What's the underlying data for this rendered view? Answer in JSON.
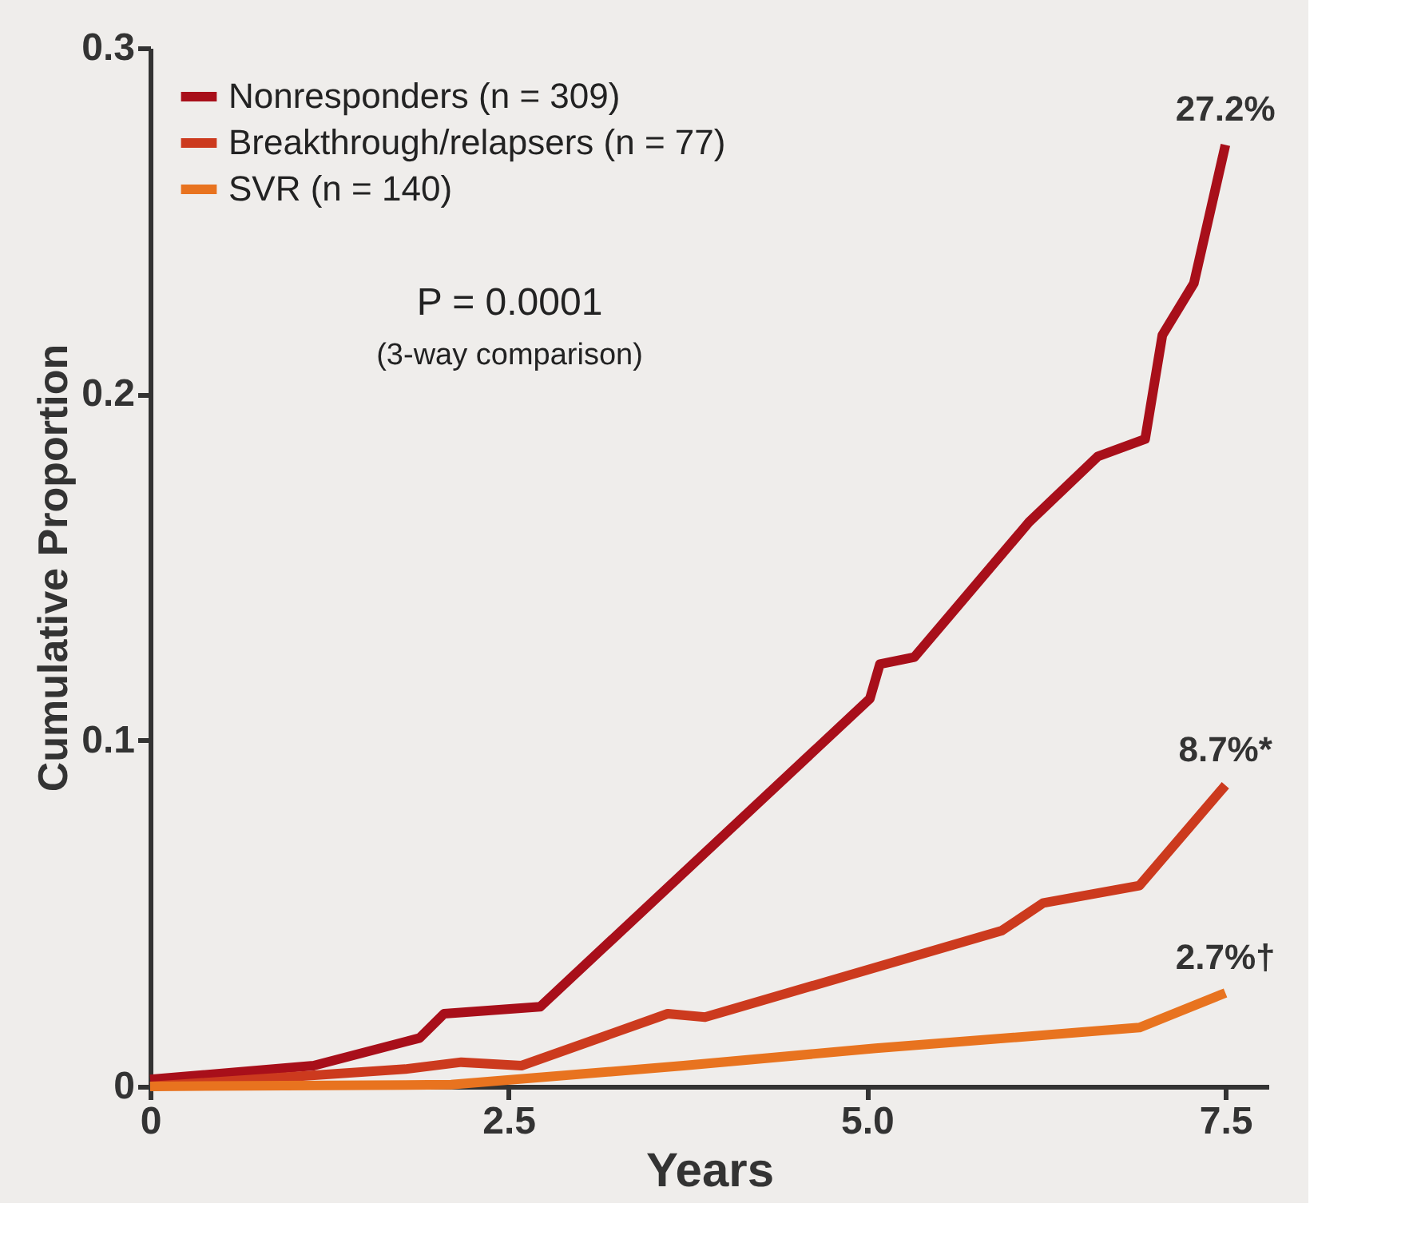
{
  "chart_data": {
    "type": "line",
    "xlabel": "Years",
    "ylabel": "Cumulative Proportion",
    "xlim": [
      0,
      7.8
    ],
    "ylim": [
      0,
      0.3
    ],
    "xticks": [
      0,
      2.5,
      {
        "value": 5,
        "label": "5.0"
      },
      7.5
    ],
    "yticks": [
      0,
      0.1,
      0.2,
      0.3
    ],
    "grid": false,
    "legend": "top left",
    "marker": "none",
    "line_style": "solid",
    "series": [
      {
        "name": "Nonresponders (n = 309)",
        "color": "#a80f1a",
        "x": [
          0,
          1.14,
          1.88,
          2.05,
          2.72,
          5.02,
          5.09,
          5.33,
          6.13,
          6.61,
          6.94,
          7.06,
          7.28,
          7.5
        ],
        "values": [
          0.002,
          0.006,
          0.014,
          0.021,
          0.023,
          0.112,
          0.122,
          0.124,
          0.163,
          0.182,
          0.187,
          0.217,
          0.232,
          0.272
        ]
      },
      {
        "name": "Breakthrough/relapsers (n = 77)",
        "color": "#cc3a1e",
        "x": [
          0,
          1.78,
          2.17,
          2.59,
          3.61,
          3.87,
          5.94,
          6.23,
          6.9,
          7.5
        ],
        "values": [
          0,
          0.005,
          0.007,
          0.006,
          0.021,
          0.02,
          0.045,
          0.053,
          0.058,
          0.087
        ]
      },
      {
        "name": "SVR (n = 140)",
        "color": "#e8731f",
        "x": [
          0,
          2.1,
          3.72,
          5.06,
          6.9,
          7.5
        ],
        "values": [
          0,
          0.0005,
          0.006,
          0.011,
          0.017,
          0.027
        ]
      }
    ],
    "annotations": [
      "27.2%",
      "8.7%*",
      "2.7%†",
      "P = 0.0001",
      "(3-way comparison)"
    ]
  }
}
